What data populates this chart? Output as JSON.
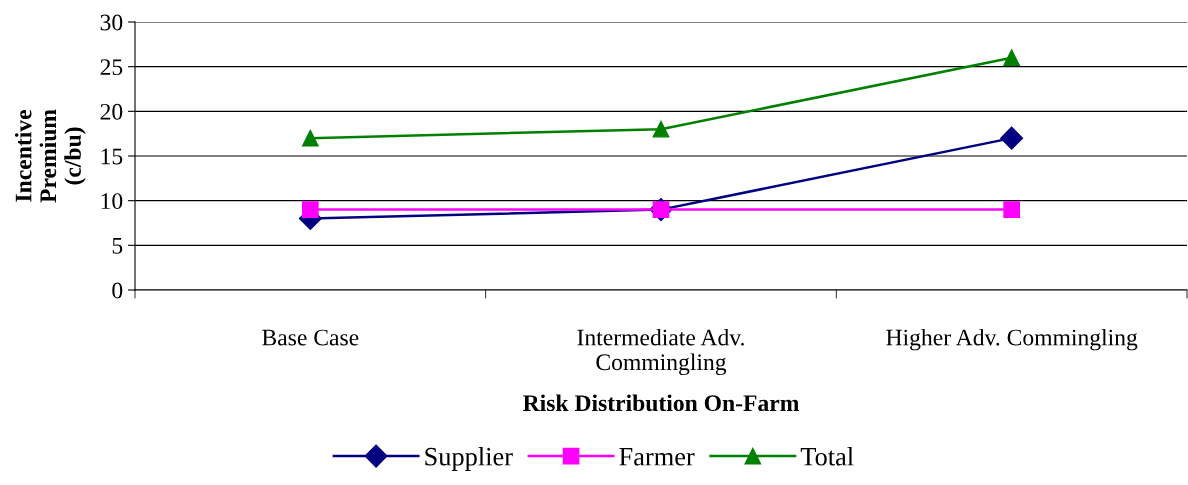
{
  "chart_data": {
    "type": "line",
    "xlabel": "Risk Distribution On-Farm",
    "ylabel": "Incentive Premium (c/bu)",
    "categories": [
      "Base Case",
      "Intermediate Adv. Commingling",
      "Higher Adv. Commingling"
    ],
    "series": [
      {
        "name": "Supplier",
        "color": "#000080",
        "marker": "diamond",
        "values": [
          8,
          9,
          17
        ]
      },
      {
        "name": "Farmer",
        "color": "#ff00ff",
        "marker": "square",
        "values": [
          9,
          9,
          9
        ]
      },
      {
        "name": "Total",
        "color": "#008000",
        "marker": "triangle",
        "values": [
          17,
          18,
          26
        ]
      }
    ],
    "ylim": [
      0,
      30
    ],
    "yticks": [
      0,
      5,
      10,
      15,
      20,
      25,
      30
    ],
    "grid": "y",
    "legend": "bottom"
  }
}
